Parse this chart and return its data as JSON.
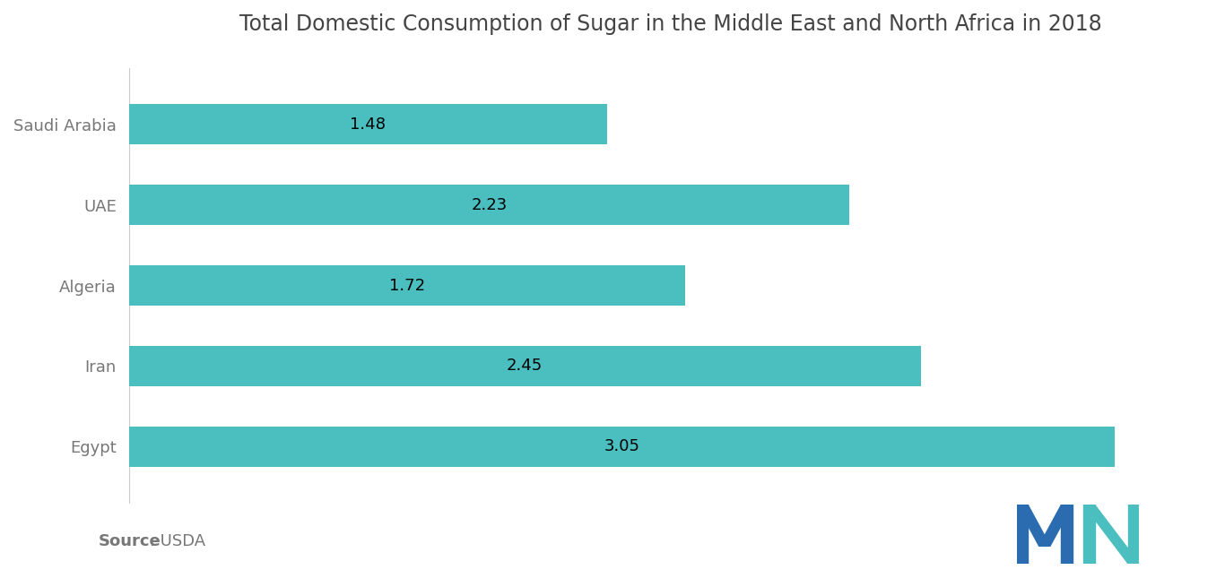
{
  "title": "Total Domestic Consumption of Sugar in the Middle East and North Africa in 2018",
  "categories": [
    "Egypt",
    "Iran",
    "Algeria",
    "UAE",
    "Saudi Arabia"
  ],
  "values": [
    3.05,
    2.45,
    1.72,
    2.23,
    1.48
  ],
  "bar_color": "#4BBFBF",
  "text_color": "#777777",
  "title_color": "#444444",
  "background_color": "#ffffff",
  "bar_height": 0.5,
  "xlim": [
    0,
    3.35
  ],
  "label_fontsize": 13,
  "title_fontsize": 17,
  "value_fontsize": 13,
  "source_bold": "Source",
  "source_rest": " : USDA",
  "source_fontsize": 13,
  "logo_color_dark": "#2B6CB0",
  "logo_color_teal": "#4BBFBF"
}
